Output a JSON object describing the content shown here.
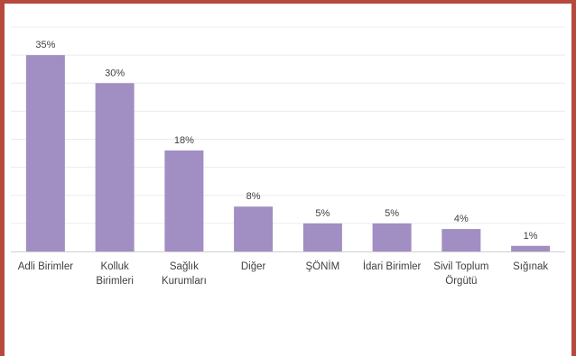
{
  "chart_data": {
    "type": "bar",
    "categories": [
      [
        "Adli Birimler"
      ],
      [
        "Kolluk",
        "Birimleri"
      ],
      [
        "Sağlık",
        "Kurumları"
      ],
      [
        "Diğer"
      ],
      [
        "ŞÖNİM"
      ],
      [
        "İdari Birimler"
      ],
      [
        "Sivil Toplum",
        "Örgütü"
      ],
      [
        "Sığınak"
      ]
    ],
    "values": [
      35,
      30,
      18,
      8,
      5,
      5,
      4,
      1
    ],
    "value_labels": [
      "35%",
      "30%",
      "18%",
      "8%",
      "5%",
      "5%",
      "4%",
      "1%"
    ],
    "title": "",
    "xlabel": "",
    "ylabel": "",
    "ylim": [
      0,
      40
    ],
    "grid": true,
    "legend": "none",
    "colors": {
      "bar": "#a18ec2",
      "grid": "#ececec",
      "axis": "#d0d0d0",
      "frame": "#b5493c"
    }
  }
}
